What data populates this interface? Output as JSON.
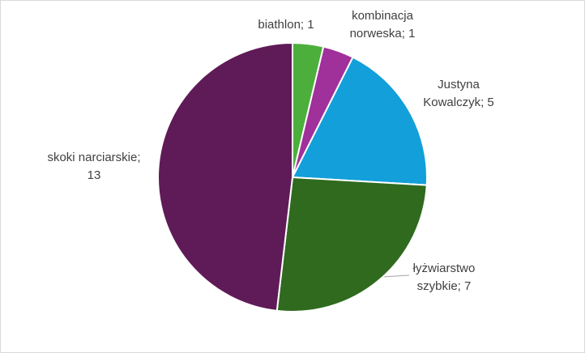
{
  "chart_data": {
    "type": "pie",
    "values": [
      1,
      1,
      5,
      7,
      13
    ],
    "value_labels": [
      [
        "biathlon; 1"
      ],
      [
        "kombinacja",
        "norweska; 1"
      ],
      [
        "Justyna",
        "Kowalczyk; 5"
      ],
      [
        "łyżwiarstwo",
        "szybkie; 7"
      ],
      [
        "skoki narciarskie;",
        "13"
      ]
    ],
    "colors": [
      "#4caf3c",
      "#a0309a",
      "#139fd9",
      "#2f6a1f",
      "#5f1b57"
    ]
  }
}
